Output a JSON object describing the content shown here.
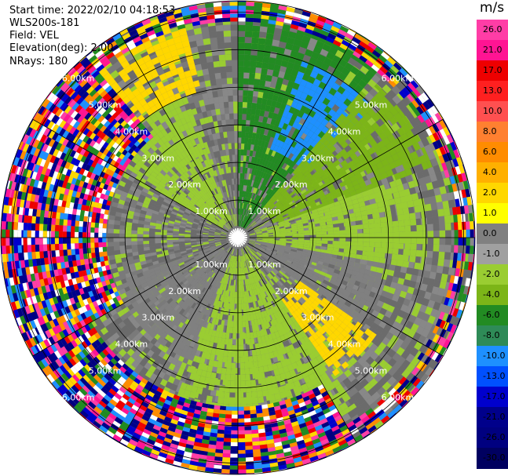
{
  "info": {
    "start_time": "Start time: 2022/02/10 04:18:53",
    "site": "WLS200s-181",
    "field": "Field: VEL",
    "elevation": "Elevation(deg): 2.00",
    "nrays": "NRays: 180"
  },
  "colorbar": {
    "units": "m/s",
    "labels": [
      "26.0",
      "21.0",
      "17.0",
      "13.0",
      "10.0",
      "8.0",
      "6.0",
      "4.0",
      "2.0",
      "1.0",
      "0.0",
      "-1.0",
      "-2.0",
      "-4.0",
      "-6.0",
      "-8.0",
      "-10.0",
      "-13.0",
      "-17.0",
      "-21.0",
      "-26.0",
      "-30.0"
    ],
    "colors": [
      "#ff3da6",
      "#ff1493",
      "#ee0000",
      "#ff2020",
      "#ff5050",
      "#ff8030",
      "#ff8c00",
      "#ffb000",
      "#ffd700",
      "#ffff00",
      "#808080",
      "#a0a0a0",
      "#9acd32",
      "#7cb518",
      "#228b22",
      "#2e8b57",
      "#1e90ff",
      "#0050ff",
      "#0000cd",
      "#00008b",
      "#000080",
      "#000060"
    ]
  },
  "chart_data": {
    "type": "heatmap",
    "title": "",
    "field": "VEL",
    "units": "m/s",
    "projection": "polar",
    "range_rings_km": [
      1.0,
      2.0,
      3.0,
      4.0,
      5.0,
      6.0
    ],
    "range_labels": [
      "1.00km",
      "2.00km",
      "3.00km",
      "4.00km",
      "5.00km",
      "6.00km"
    ],
    "max_range_km": 6.3,
    "nrays": 180,
    "elevation_deg": 2.0,
    "sectors": [
      {
        "az_from": 0,
        "az_to": 40,
        "r_from": 0.3,
        "r_to": 6.3,
        "value": -6.0
      },
      {
        "az_from": 20,
        "az_to": 45,
        "r_from": 2.5,
        "r_to": 5.0,
        "value": -10.0
      },
      {
        "az_from": 40,
        "az_to": 70,
        "r_from": 1.0,
        "r_to": 5.5,
        "value": -4.0
      },
      {
        "az_from": 70,
        "az_to": 100,
        "r_from": 0.5,
        "r_to": 5.0,
        "value": -2.0
      },
      {
        "az_from": 100,
        "az_to": 125,
        "r_from": 0.5,
        "r_to": 4.0,
        "value": 0.0
      },
      {
        "az_from": 125,
        "az_to": 145,
        "r_from": 2.0,
        "r_to": 4.5,
        "value": 2.0
      },
      {
        "az_from": 145,
        "az_to": 200,
        "r_from": 0.5,
        "r_to": 5.5,
        "value": -2.0
      },
      {
        "az_from": 200,
        "az_to": 250,
        "r_from": 0.5,
        "r_to": 3.5,
        "value": 0.0
      },
      {
        "az_from": 300,
        "az_to": 340,
        "r_from": 0.5,
        "r_to": 4.0,
        "value": -2.0
      },
      {
        "az_from": 320,
        "az_to": 345,
        "r_from": 4.0,
        "r_to": 6.3,
        "value": 2.0
      },
      {
        "az_from": 240,
        "az_to": 320,
        "r_from": 3.5,
        "r_to": 6.3,
        "value": "noise"
      },
      {
        "az_from": 150,
        "az_to": 240,
        "r_from": 4.5,
        "r_to": 6.3,
        "value": "noise"
      }
    ]
  }
}
